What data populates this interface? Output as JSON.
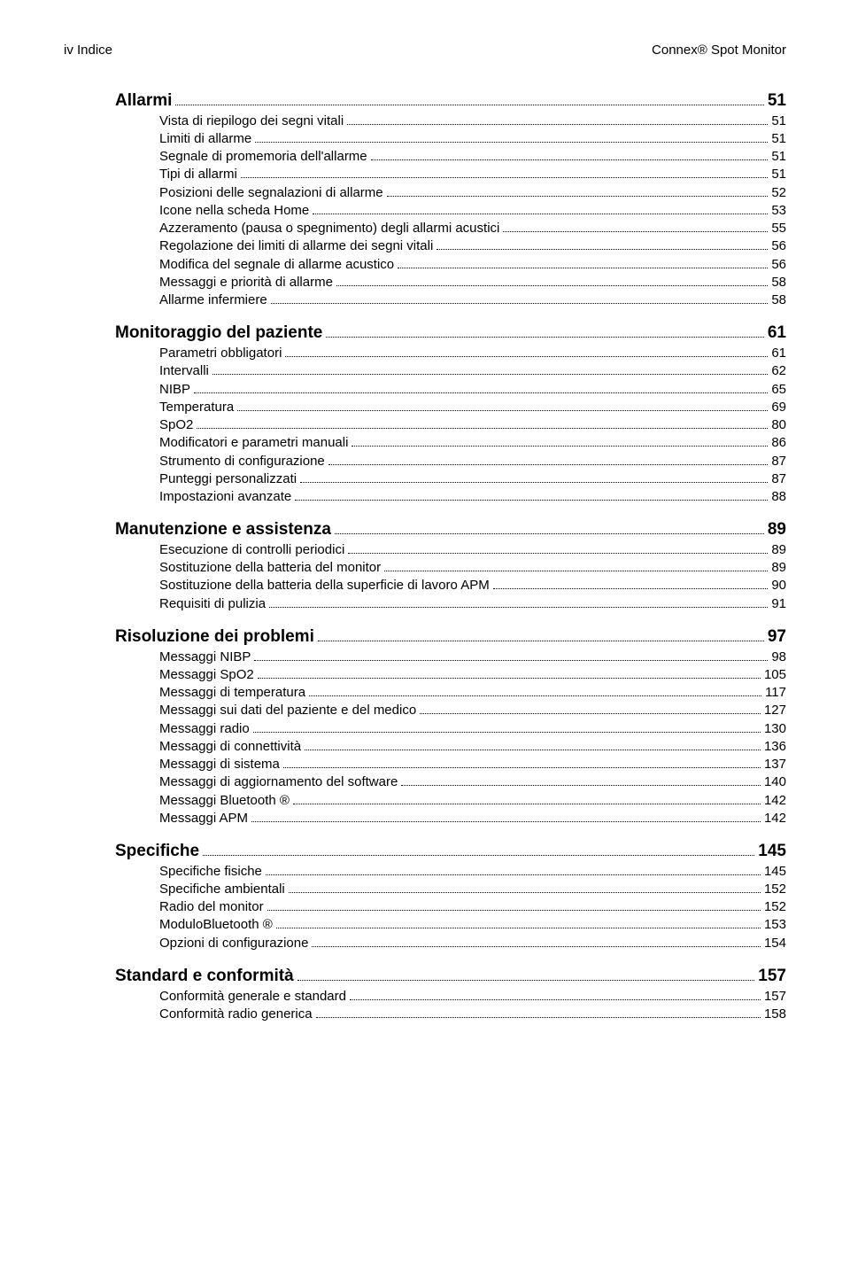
{
  "header": {
    "left": "iv Indice",
    "right": "Connex® Spot Monitor"
  },
  "sections": [
    {
      "title": "Allarmi",
      "page": "51",
      "items": [
        {
          "label": "Vista di riepilogo dei segni vitali",
          "page": "51"
        },
        {
          "label": "Limiti di allarme",
          "page": "51"
        },
        {
          "label": "Segnale di promemoria dell'allarme",
          "page": "51"
        },
        {
          "label": "Tipi di allarmi",
          "page": "51"
        },
        {
          "label": "Posizioni delle segnalazioni di allarme",
          "page": "52"
        },
        {
          "label": "Icone nella scheda Home",
          "page": "53"
        },
        {
          "label": "Azzeramento (pausa o spegnimento) degli allarmi acustici",
          "page": "55"
        },
        {
          "label": "Regolazione dei limiti di allarme dei segni vitali",
          "page": "56"
        },
        {
          "label": "Modifica del segnale di allarme acustico",
          "page": "56"
        },
        {
          "label": "Messaggi e priorità di allarme",
          "page": "58"
        },
        {
          "label": "Allarme infermiere",
          "page": "58"
        }
      ]
    },
    {
      "title": "Monitoraggio del paziente",
      "page": "61",
      "items": [
        {
          "label": "Parametri obbligatori",
          "page": "61"
        },
        {
          "label": "Intervalli",
          "page": "62"
        },
        {
          "label": "NIBP",
          "page": "65"
        },
        {
          "label": "Temperatura",
          "page": "69"
        },
        {
          "label": "SpO2",
          "page": "80"
        },
        {
          "label": "Modificatori e parametri manuali",
          "page": "86"
        },
        {
          "label": "Strumento di configurazione",
          "page": "87"
        },
        {
          "label": "Punteggi personalizzati",
          "page": "87"
        },
        {
          "label": "Impostazioni avanzate",
          "page": "88"
        }
      ]
    },
    {
      "title": "Manutenzione e assistenza",
      "page": "89",
      "items": [
        {
          "label": "Esecuzione di controlli periodici",
          "page": "89"
        },
        {
          "label": "Sostituzione della batteria del monitor",
          "page": "89"
        },
        {
          "label": "Sostituzione della batteria della superficie di lavoro APM",
          "page": "90"
        },
        {
          "label": "Requisiti di pulizia",
          "page": "91"
        }
      ]
    },
    {
      "title": "Risoluzione dei problemi",
      "page": "97",
      "items": [
        {
          "label": "Messaggi NIBP",
          "page": "98"
        },
        {
          "label": "Messaggi SpO2",
          "page": "105"
        },
        {
          "label": "Messaggi di temperatura",
          "page": "117"
        },
        {
          "label": "Messaggi sui dati del paziente e del medico",
          "page": "127"
        },
        {
          "label": "Messaggi radio",
          "page": "130"
        },
        {
          "label": "Messaggi di connettività",
          "page": "136"
        },
        {
          "label": "Messaggi di sistema",
          "page": "137"
        },
        {
          "label": "Messaggi di aggiornamento del software",
          "page": "140"
        },
        {
          "label": "Messaggi Bluetooth ®",
          "page": "142"
        },
        {
          "label": "Messaggi APM",
          "page": "142"
        }
      ]
    },
    {
      "title": "Specifiche",
      "page": "145",
      "items": [
        {
          "label": "Specifiche fisiche",
          "page": "145"
        },
        {
          "label": "Specifiche ambientali",
          "page": "152"
        },
        {
          "label": "Radio del monitor",
          "page": "152"
        },
        {
          "label": "ModuloBluetooth ®",
          "page": "153"
        },
        {
          "label": "Opzioni di configurazione",
          "page": "154"
        }
      ]
    },
    {
      "title": "Standard e conformità",
      "page": "157",
      "items": [
        {
          "label": "Conformità generale e standard",
          "page": "157"
        },
        {
          "label": "Conformità radio generica",
          "page": "158"
        }
      ]
    }
  ]
}
